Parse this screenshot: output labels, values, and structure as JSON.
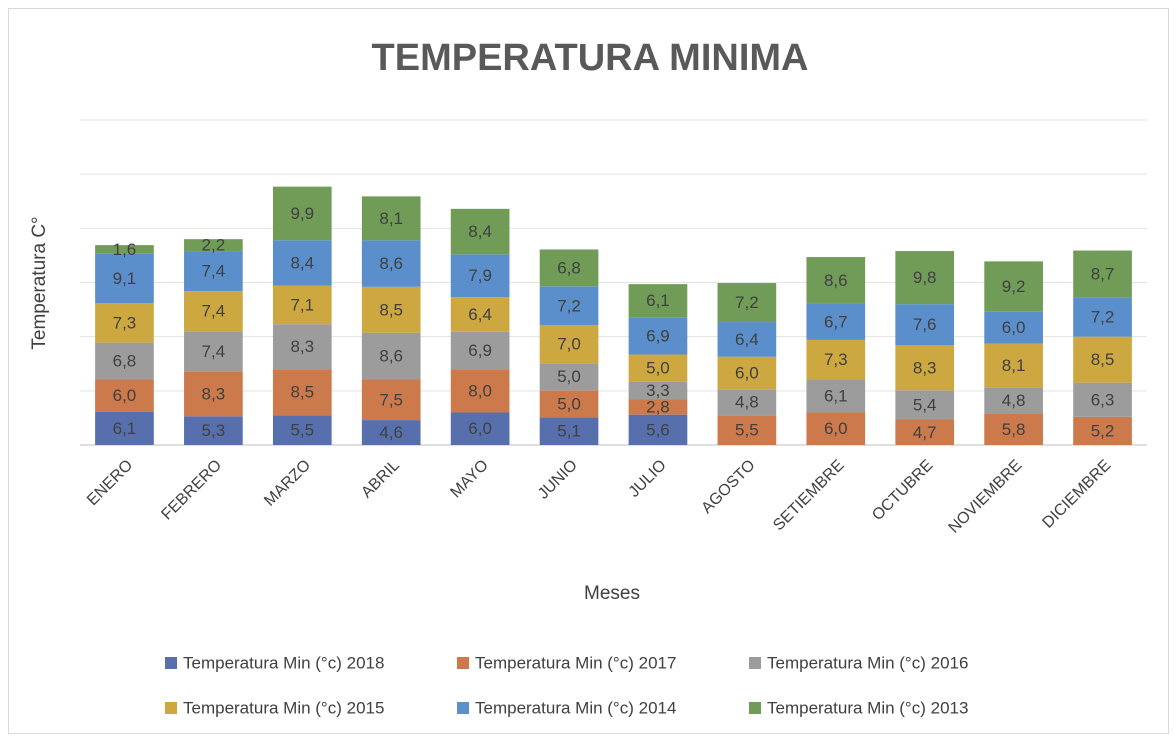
{
  "chart_data": {
    "type": "stacked_bar",
    "title": "TEMPERATURA MINIMA",
    "y_label": "Temperatura C°",
    "x_label": "Meses",
    "categories": [
      "ENERO",
      "FEBRERO",
      "MARZO",
      "ABRIL",
      "MAYO",
      "JUNIO",
      "JULIO",
      "AGOSTO",
      "SETIEMBRE",
      "OCTUBRE",
      "NOVIEMBRE",
      "DICIEMBRE"
    ],
    "series": [
      {
        "name": "Temperatura Min (°c) 2018",
        "color": "#5770ad",
        "values": [
          6.1,
          5.3,
          5.5,
          4.6,
          6.0,
          5.1,
          5.6,
          null,
          null,
          null,
          null,
          null
        ],
        "value_labels": [
          "6,1",
          "5,3",
          "5,5",
          "4,6",
          "6,0",
          "5,1",
          "5,6",
          null,
          null,
          null,
          null,
          null
        ]
      },
      {
        "name": "Temperatura Min (°c) 2017",
        "color": "#cc7a4c",
        "values": [
          6.0,
          8.3,
          8.5,
          7.5,
          8.0,
          5.0,
          2.8,
          5.5,
          6.0,
          4.7,
          5.8,
          5.2
        ],
        "value_labels": [
          "6,0",
          "8,3",
          "8,5",
          "7,5",
          "8,0",
          "5,0",
          "2,8",
          "5,5",
          "6,0",
          "4,7",
          "5,8",
          "5,2"
        ]
      },
      {
        "name": "Temperatura Min (°c) 2016",
        "color": "#9c9c9c",
        "values": [
          6.8,
          7.4,
          8.3,
          8.6,
          6.9,
          5.0,
          3.3,
          4.8,
          6.1,
          5.4,
          4.8,
          6.3
        ],
        "value_labels": [
          "6,8",
          "7,4",
          "8,3",
          "8,6",
          "6,9",
          "5,0",
          "3,3",
          "4,8",
          "6,1",
          "5,4",
          "4,8",
          "6,3"
        ]
      },
      {
        "name": "Temperatura Min (°c) 2015",
        "color": "#cda840",
        "values": [
          7.3,
          7.4,
          7.1,
          8.5,
          6.4,
          7.0,
          5.0,
          6.0,
          7.3,
          8.3,
          8.1,
          8.5
        ],
        "value_labels": [
          "7,3",
          "7,4",
          "7,1",
          "8,5",
          "6,4",
          "7,0",
          "5,0",
          "6,0",
          "7,3",
          "8,3",
          "8,1",
          "8,5"
        ]
      },
      {
        "name": "Temperatura Min (°c) 2014",
        "color": "#5b8fcc",
        "values": [
          9.1,
          7.4,
          8.4,
          8.6,
          7.9,
          7.2,
          6.9,
          6.4,
          6.7,
          7.6,
          6.0,
          7.2
        ],
        "value_labels": [
          "9,1",
          "7,4",
          "8,4",
          "8,6",
          "7,9",
          "7,2",
          "6,9",
          "6,4",
          "6,7",
          "7,6",
          "6,0",
          "7,2"
        ]
      },
      {
        "name": "Temperatura Min (°c) 2013",
        "color": "#709c58",
        "values": [
          1.6,
          2.2,
          9.9,
          8.1,
          8.4,
          6.8,
          6.1,
          7.2,
          8.6,
          9.8,
          9.2,
          8.7
        ],
        "value_labels": [
          "1,6",
          "2,2",
          "9,9",
          "8,1",
          "8,4",
          "6,8",
          "6,1",
          "7,2",
          "8,6",
          "9,8",
          "9,2",
          "8,7"
        ]
      }
    ],
    "ylim": [
      0,
      60
    ],
    "yticks": [
      0,
      10,
      20,
      30,
      40,
      50,
      60
    ],
    "grid": true
  }
}
